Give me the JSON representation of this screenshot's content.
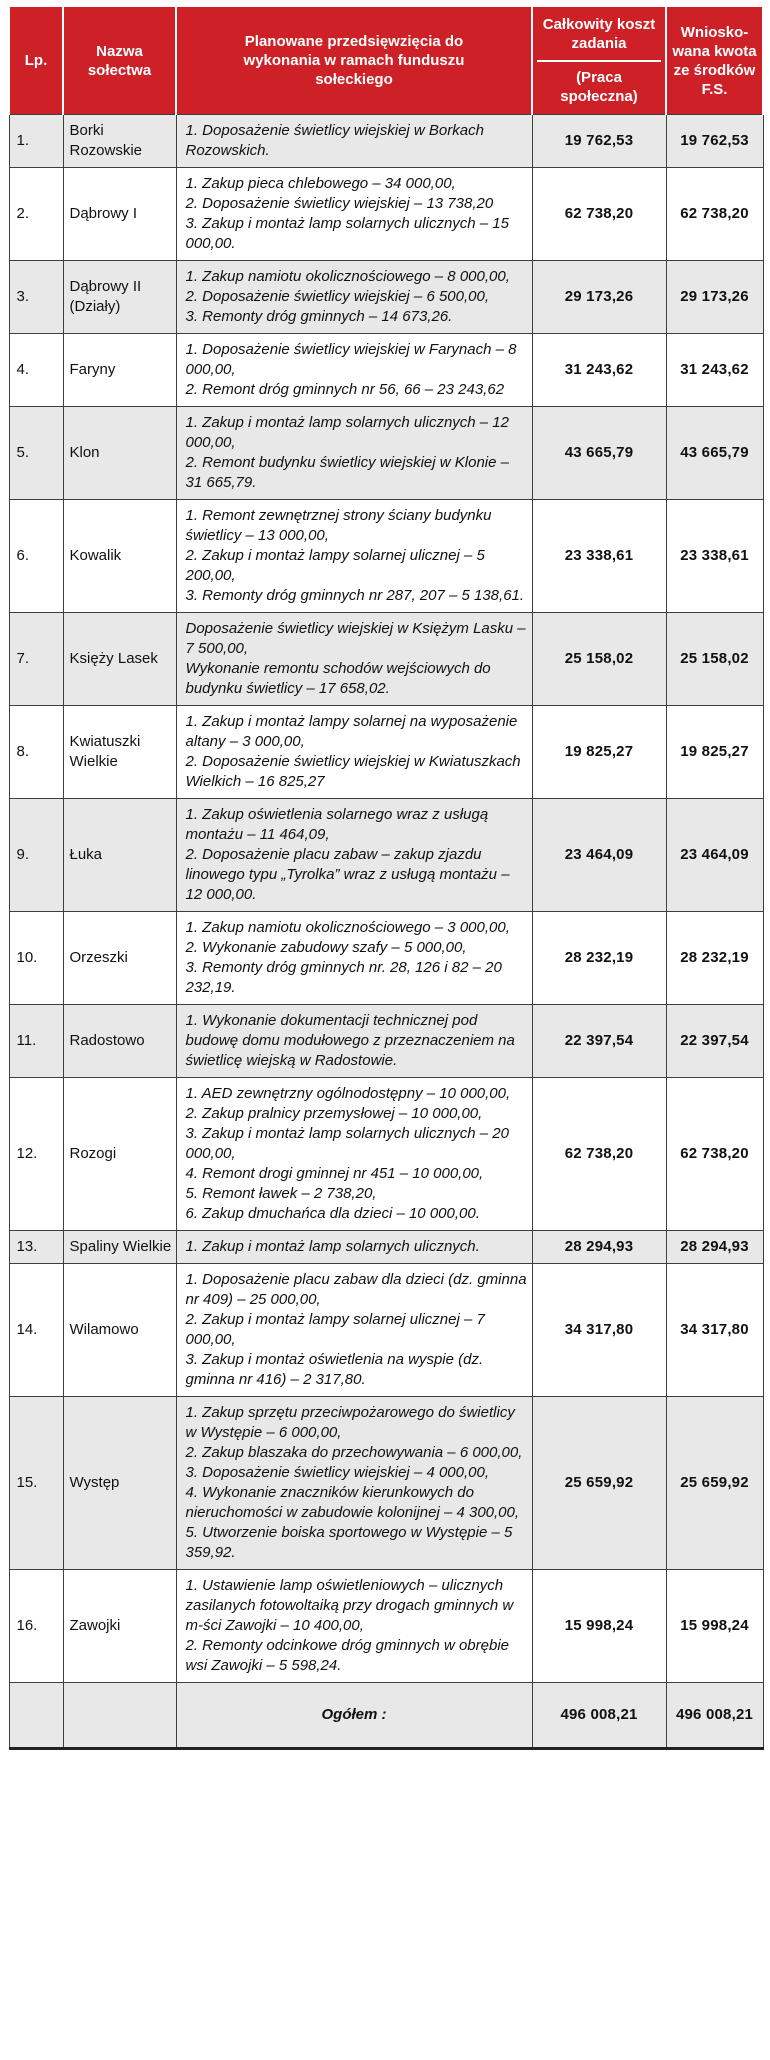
{
  "colors": {
    "header_background": "#cd2127",
    "header_text": "#ffffff",
    "shaded_row": "#e8e8e8",
    "plain_row": "#ffffff",
    "border": "#3f3f3f"
  },
  "table": {
    "headers": {
      "lp": "Lp.",
      "village": "Nazwa sołectwa",
      "projects": "Planowane przedsięwzięcia do wykonania w ramach funduszu sołeckiego",
      "cost_title": "Całkowity koszt zadania",
      "cost_subtitle": "(Praca społeczna)",
      "requested": "Wniosko-\nwana kwota\nze środków\nF.S."
    },
    "rows": [
      {
        "lp": "1.",
        "village": "Borki Rozowskie",
        "projects": [
          "1. Doposażenie świetlicy wiejskiej w Borkach Rozowskich."
        ],
        "total_cost": "19 762,53",
        "requested_amount": "19 762,53"
      },
      {
        "lp": "2.",
        "village": "Dąbrowy I",
        "projects": [
          "1. Zakup pieca chlebowego – 34 000,00,",
          "2. Doposażenie świetlicy wiejskiej – 13 738,20",
          "3. Zakup i montaż lamp solarnych ulicznych – 15 000,00."
        ],
        "total_cost": "62 738,20",
        "requested_amount": "62 738,20"
      },
      {
        "lp": "3.",
        "village": "Dąbrowy II (Działy)",
        "projects": [
          "1. Zakup namiotu okolicznościowego – 8 000,00,",
          "2. Doposażenie świetlicy wiejskiej – 6 500,00,",
          "3. Remonty dróg gminnych – 14 673,26."
        ],
        "total_cost": "29 173,26",
        "requested_amount": "29 173,26"
      },
      {
        "lp": "4.",
        "village": "Faryny",
        "projects": [
          "1. Doposażenie świetlicy wiejskiej w Farynach – 8 000,00,",
          "2. Remont dróg gminnych nr 56, 66 – 23 243,62"
        ],
        "total_cost": "31 243,62",
        "requested_amount": "31 243,62"
      },
      {
        "lp": "5.",
        "village": "Klon",
        "projects": [
          "1. Zakup i montaż lamp solarnych ulicznych – 12 000,00,",
          "2. Remont budynku świetlicy wiejskiej w Klonie – 31 665,79."
        ],
        "total_cost": "43 665,79",
        "requested_amount": "43 665,79"
      },
      {
        "lp": "6.",
        "village": "Kowalik",
        "projects": [
          "1. Remont zewnętrznej strony ściany budynku świetlicy – 13 000,00,",
          "2. Zakup i montaż lampy solarnej ulicznej – 5 200,00,",
          "3. Remonty dróg gminnych nr 287, 207 – 5 138,61."
        ],
        "total_cost": "23 338,61",
        "requested_amount": "23 338,61"
      },
      {
        "lp": "7.",
        "village": "Księży Lasek",
        "projects": [
          "Doposażenie świetlicy wiejskiej w Księżym Lasku – 7 500,00,",
          "Wykonanie remontu schodów wejściowych do budynku świetlicy – 17 658,02."
        ],
        "total_cost": "25 158,02",
        "requested_amount": "25 158,02"
      },
      {
        "lp": "8.",
        "village": "Kwiatuszki Wielkie",
        "projects": [
          "1. Zakup i montaż lampy solarnej na wyposażenie altany – 3 000,00,",
          "2. Doposażenie świetlicy wiejskiej w Kwiatuszkach Wielkich – 16 825,27"
        ],
        "total_cost": "19 825,27",
        "requested_amount": "19 825,27"
      },
      {
        "lp": "9.",
        "village": "Łuka",
        "projects": [
          "1. Zakup oświetlenia solarnego wraz z usługą montażu – 11 464,09,",
          "2. Doposażenie placu zabaw – zakup zjazdu linowego typu „Tyrolka” wraz z usługą montażu – 12 000,00."
        ],
        "total_cost": "23 464,09",
        "requested_amount": "23 464,09"
      },
      {
        "lp": "10.",
        "village": "Orzeszki",
        "projects": [
          "1. Zakup namiotu okolicznościowego – 3 000,00,",
          "2. Wykonanie zabudowy szafy – 5 000,00,",
          "3. Remonty dróg gminnych nr. 28, 126 i 82 – 20 232,19."
        ],
        "total_cost": "28 232,19",
        "requested_amount": "28 232,19"
      },
      {
        "lp": "11.",
        "village": "Radostowo",
        "projects": [
          "1. Wykonanie dokumentacji technicznej pod budowę domu modułowego z przeznaczeniem na świetlicę wiejską w Radostowie."
        ],
        "total_cost": "22 397,54",
        "requested_amount": "22 397,54"
      },
      {
        "lp": "12.",
        "village": "Rozogi",
        "projects": [
          "1. AED zewnętrzny ogólnodostępny – 10 000,00,",
          "2. Zakup pralnicy przemysłowej – 10 000,00,",
          "3. Zakup i montaż lamp solarnych ulicznych – 20 000,00,",
          "4. Remont drogi gminnej nr 451 – 10 000,00,",
          "5. Remont ławek – 2 738,20,",
          "6. Zakup dmuchańca dla dzieci – 10 000,00."
        ],
        "total_cost": "62 738,20",
        "requested_amount": "62 738,20"
      },
      {
        "lp": "13.",
        "village": "Spaliny Wielkie",
        "projects": [
          "1. Zakup i montaż lamp solarnych ulicznych."
        ],
        "total_cost": "28 294,93",
        "requested_amount": "28 294,93"
      },
      {
        "lp": "14.",
        "village": "Wilamowo",
        "projects": [
          "1. Doposażenie placu zabaw dla dzieci (dz. gminna nr 409) – 25 000,00,",
          "2. Zakup i montaż lampy solarnej ulicznej – 7 000,00,",
          "3. Zakup i montaż oświetlenia na wyspie (dz. gminna nr 416) – 2 317,80."
        ],
        "total_cost": "34 317,80",
        "requested_amount": "34 317,80"
      },
      {
        "lp": "15.",
        "village": "Występ",
        "projects": [
          "1. Zakup sprzętu przeciwpożarowego do świetlicy w Występie – 6 000,00,",
          "2. Zakup blaszaka do przechowywania – 6 000,00,",
          "3. Doposażenie świetlicy wiejskiej – 4 000,00,",
          "4. Wykonanie znaczników kierunkowych do nieruchomości w zabudowie kolonijnej – 4 300,00,",
          "5. Utworzenie boiska sportowego w Występie – 5 359,92."
        ],
        "total_cost": "25 659,92",
        "requested_amount": "25 659,92"
      },
      {
        "lp": "16.",
        "village": "Zawojki",
        "projects": [
          "1. Ustawienie lamp oświetleniowych – ulicznych zasilanych fotowoltaiką przy drogach gminnych w m-ści Zawojki – 10 400,00,",
          "2. Remonty odcinkowe dróg gminnych w obrębie wsi Zawojki – 5 598,24."
        ],
        "total_cost": "15 998,24",
        "requested_amount": "15 998,24"
      }
    ],
    "footer": {
      "label": "Ogółem :",
      "total_cost": "496 008,21",
      "requested_amount": "496 008,21"
    }
  }
}
